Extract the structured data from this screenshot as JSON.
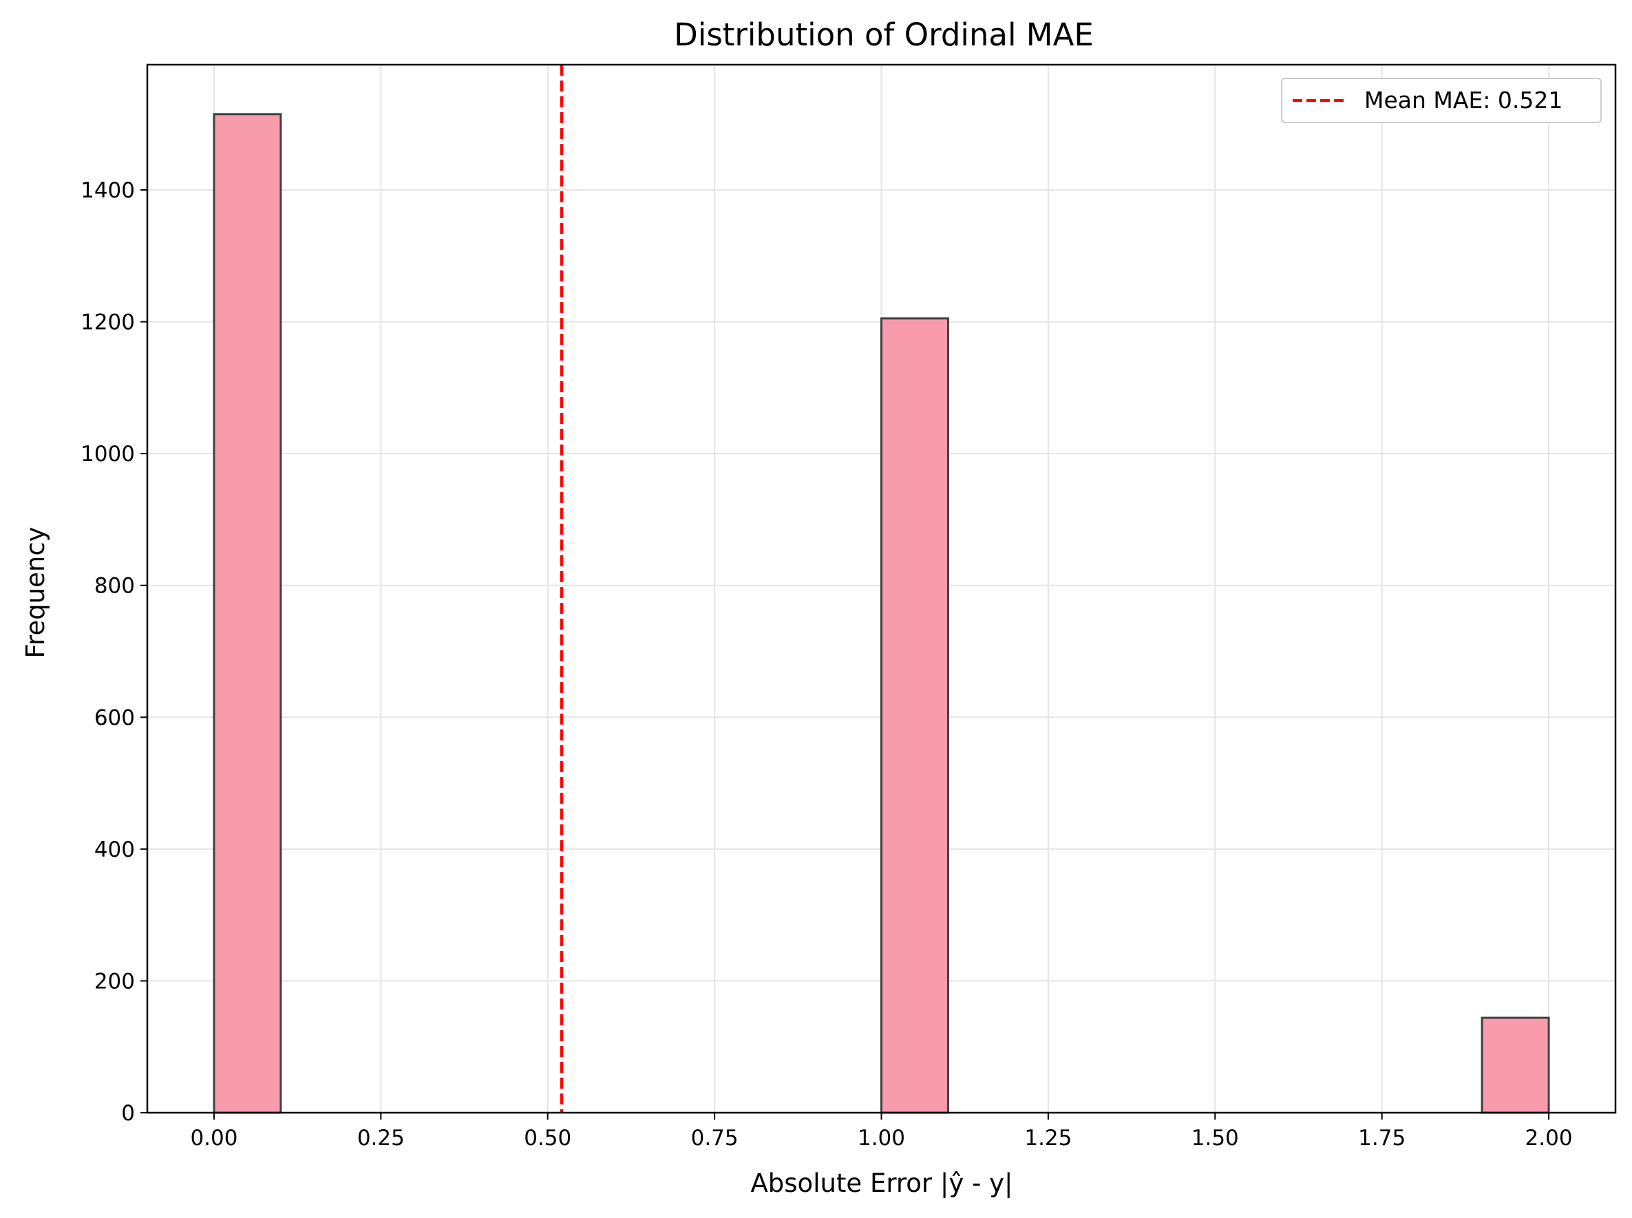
{
  "chart_data": {
    "type": "bar",
    "title": "Distribution of Ordinal MAE",
    "xlabel": "Absolute Error |ŷ - y|",
    "ylabel": "Frequency",
    "xlim": [
      -0.1,
      2.1
    ],
    "ylim": [
      0,
      1590
    ],
    "grid": true,
    "legend_position": "top-right",
    "bins": [
      {
        "x0": 0.0,
        "x1": 0.1,
        "value": 1515
      },
      {
        "x0": 1.0,
        "x1": 1.1,
        "value": 1205
      },
      {
        "x0": 1.9,
        "x1": 2.0,
        "value": 144
      }
    ],
    "bar_color": "#f89cad",
    "bar_edge_color": "#404040",
    "mean_line": {
      "value": 0.521,
      "label": "Mean MAE: 0.521",
      "color": "#ff0000",
      "style": "dashed"
    },
    "x_ticks": [
      "0.00",
      "0.25",
      "0.50",
      "0.75",
      "1.00",
      "1.25",
      "1.50",
      "1.75",
      "2.00"
    ],
    "y_ticks": [
      "0",
      "200",
      "400",
      "600",
      "800",
      "1000",
      "1200",
      "1400"
    ]
  }
}
